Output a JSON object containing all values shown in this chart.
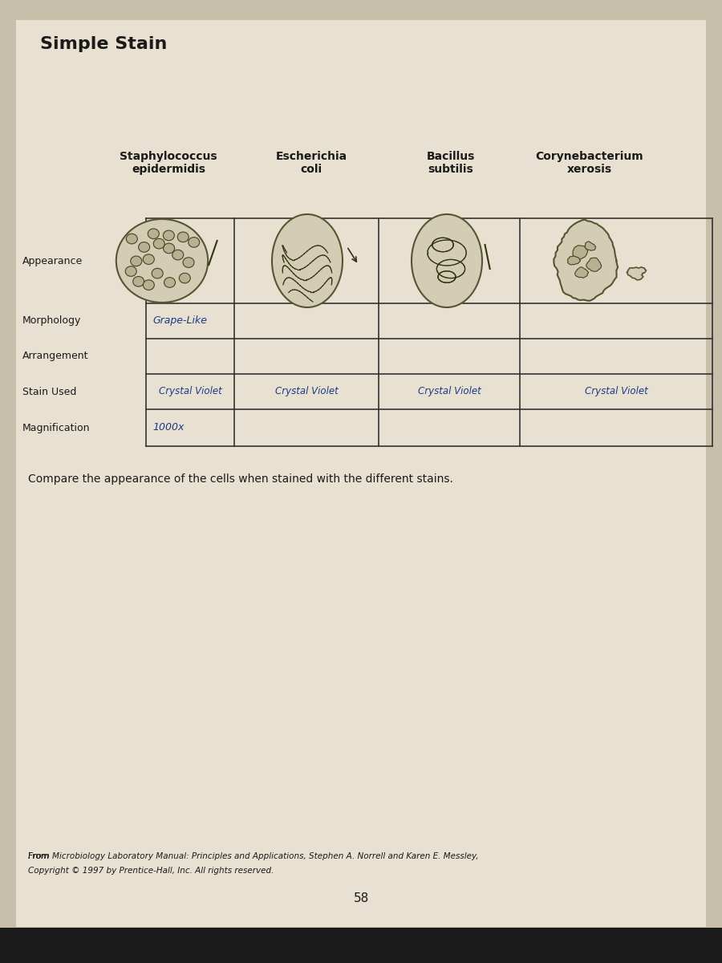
{
  "title": "Simple Stain",
  "bg_color": "#c8bfaa",
  "paper_color": "#e8e0d0",
  "columns": [
    "Staphylococcus\nepidermidis",
    "Escherichia\ncoli",
    "Bacillus\nsubtilis",
    "Corynebacterium\nxerosis"
  ],
  "row_labels": [
    "Appearance",
    "Morphology",
    "Arrangement",
    "Stain Used",
    "Magnification"
  ],
  "morphology_col0": "Grape-Like",
  "stain_used": [
    "Crystal Violet",
    "Crystal Violet",
    "Crystal Violet",
    "Crystal Violet"
  ],
  "magnification_col0": "1000x",
  "compare_text": "Compare the appearance of the cells when stained with the different stains.",
  "footer_line1": "From ",
  "footer_italic": "Microbiology Laboratory Manual: Principles and Applications,",
  "footer_line1_rest": " Stephen A. Norrell and Karen E. Messley,",
  "footer_line2": "Copyright © 1997 by Prentice-Hall, Inc. All rights reserved.",
  "page_number": "58",
  "text_color": "#1a1a1a",
  "line_color": "#333333",
  "cell_face": "#d4cdb5",
  "cell_edge": "#555533",
  "cell_inner_face": "#b8b090",
  "cell_inner_edge": "#444422",
  "cell_line": "#333311",
  "written_color": "#1a3a8a"
}
